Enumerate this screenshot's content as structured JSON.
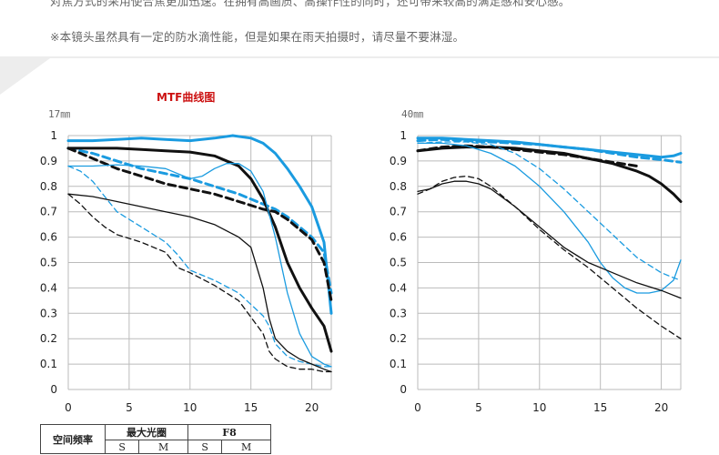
{
  "notes": {
    "top": "对焦方式的采用使合焦更加迅速。在拥有高画质、高操作性的同时，还可带来较高的满足感和安心感。",
    "warning": "※本镜头虽然具有一定的防水滴性能，但是如果在雨天拍摄时，请尽量不要淋湿。"
  },
  "colors": {
    "blue": "#1a9be0",
    "black": "#111111",
    "red": "#cc1111",
    "banner": "#ededed"
  },
  "chart_title": "MTF曲线图",
  "legend": {
    "header": "空间频率",
    "max_aperture": "最大光圈",
    "f8": "F8",
    "s": "S",
    "m": "M"
  },
  "chart_data": [
    {
      "type": "line",
      "title": "17㎜",
      "xlim": [
        0,
        21.6
      ],
      "ylim": [
        0,
        1
      ],
      "xticks": [
        "0",
        "5",
        "10",
        "15",
        "20"
      ],
      "yticks": [
        "0",
        "0.1",
        "0.2",
        "0.3",
        "0.4",
        "0.5",
        "0.6",
        "0.7",
        "0.8",
        "0.9",
        "1"
      ],
      "grid": true,
      "series": [
        {
          "color": "blue",
          "width": "thick",
          "dash": "solid",
          "x": [
            0,
            2,
            4,
            6,
            8,
            10,
            12,
            13.5,
            15,
            16,
            17,
            18,
            19,
            20,
            21,
            21.6
          ],
          "y": [
            0.98,
            0.98,
            0.985,
            0.99,
            0.985,
            0.98,
            0.99,
            1.0,
            0.99,
            0.97,
            0.93,
            0.87,
            0.8,
            0.72,
            0.58,
            0.3
          ]
        },
        {
          "color": "blue",
          "width": "thick",
          "dash": "dashed",
          "x": [
            0,
            2,
            4,
            6,
            8,
            10,
            12,
            14,
            16,
            17,
            18,
            19,
            20,
            21,
            21.6
          ],
          "y": [
            0.95,
            0.93,
            0.9,
            0.87,
            0.85,
            0.83,
            0.8,
            0.77,
            0.73,
            0.71,
            0.68,
            0.64,
            0.6,
            0.54,
            0.38
          ]
        },
        {
          "color": "black",
          "width": "thick",
          "dash": "solid",
          "x": [
            0,
            2,
            4,
            6,
            8,
            10,
            12,
            14,
            15,
            16,
            17,
            18,
            19,
            20,
            21,
            21.6
          ],
          "y": [
            0.95,
            0.95,
            0.95,
            0.945,
            0.94,
            0.935,
            0.92,
            0.88,
            0.83,
            0.75,
            0.64,
            0.5,
            0.4,
            0.32,
            0.25,
            0.15
          ]
        },
        {
          "color": "black",
          "width": "thick",
          "dash": "dashed",
          "x": [
            0,
            2,
            4,
            6,
            8,
            10,
            12,
            14,
            16,
            17,
            18,
            19,
            20,
            21,
            21.6
          ],
          "y": [
            0.95,
            0.91,
            0.87,
            0.84,
            0.81,
            0.79,
            0.77,
            0.74,
            0.71,
            0.7,
            0.67,
            0.63,
            0.59,
            0.5,
            0.35
          ]
        },
        {
          "color": "blue",
          "width": "thin",
          "dash": "solid",
          "x": [
            0,
            2,
            4,
            6,
            8,
            10,
            11,
            12,
            13,
            14,
            15,
            16,
            17,
            18,
            19,
            20,
            21,
            21.6
          ],
          "y": [
            0.88,
            0.88,
            0.885,
            0.88,
            0.87,
            0.83,
            0.84,
            0.87,
            0.89,
            0.89,
            0.86,
            0.78,
            0.6,
            0.38,
            0.22,
            0.13,
            0.1,
            0.09
          ]
        },
        {
          "color": "blue",
          "width": "thin",
          "dash": "dashed",
          "x": [
            0,
            1,
            2,
            3,
            4,
            6,
            8,
            9,
            10,
            12,
            14,
            16,
            16.5,
            17,
            18,
            19,
            20,
            21,
            21.6
          ],
          "y": [
            0.88,
            0.86,
            0.82,
            0.76,
            0.7,
            0.64,
            0.58,
            0.53,
            0.47,
            0.43,
            0.38,
            0.29,
            0.25,
            0.18,
            0.13,
            0.11,
            0.1,
            0.09,
            0.09
          ]
        },
        {
          "color": "black",
          "width": "thin",
          "dash": "solid",
          "x": [
            0,
            2,
            4,
            6,
            8,
            10,
            12,
            14,
            15,
            16,
            16.5,
            17,
            18,
            19,
            20,
            21,
            21.6
          ],
          "y": [
            0.77,
            0.76,
            0.74,
            0.72,
            0.7,
            0.68,
            0.65,
            0.6,
            0.56,
            0.4,
            0.28,
            0.2,
            0.15,
            0.12,
            0.1,
            0.08,
            0.07
          ]
        },
        {
          "color": "black",
          "width": "thin",
          "dash": "dashed",
          "x": [
            0,
            1,
            2,
            3,
            4,
            6,
            8,
            9,
            10,
            12,
            14,
            16,
            16.5,
            17,
            18,
            19,
            20,
            21,
            21.6
          ],
          "y": [
            0.77,
            0.73,
            0.68,
            0.64,
            0.61,
            0.58,
            0.54,
            0.48,
            0.46,
            0.41,
            0.35,
            0.22,
            0.15,
            0.12,
            0.09,
            0.08,
            0.08,
            0.07,
            0.07
          ]
        }
      ]
    },
    {
      "type": "line",
      "title": "40㎜",
      "xlim": [
        0,
        21.6
      ],
      "ylim": [
        0,
        1
      ],
      "xticks": [
        "0",
        "5",
        "10",
        "15",
        "20"
      ],
      "yticks": [
        "0",
        "0.1",
        "0.2",
        "0.3",
        "0.4",
        "0.5",
        "0.6",
        "0.7",
        "0.8",
        "0.9",
        "1"
      ],
      "grid": true,
      "series": [
        {
          "color": "blue",
          "width": "thick",
          "dash": "solid",
          "x": [
            0,
            2,
            4,
            6,
            8,
            10,
            12,
            14,
            16,
            18,
            19,
            20,
            21,
            21.6
          ],
          "y": [
            0.99,
            0.99,
            0.985,
            0.98,
            0.975,
            0.965,
            0.955,
            0.945,
            0.935,
            0.925,
            0.92,
            0.915,
            0.92,
            0.93
          ]
        },
        {
          "color": "blue",
          "width": "thick",
          "dash": "dashed",
          "x": [
            0,
            2,
            4,
            6,
            8,
            10,
            12,
            14,
            16,
            18,
            20,
            21.6
          ],
          "y": [
            0.98,
            0.985,
            0.98,
            0.975,
            0.97,
            0.965,
            0.955,
            0.945,
            0.93,
            0.915,
            0.905,
            0.895
          ]
        },
        {
          "color": "black",
          "width": "thick",
          "dash": "solid",
          "x": [
            0,
            2,
            4,
            6,
            8,
            10,
            12,
            14,
            16,
            18,
            19,
            20,
            21,
            21.6
          ],
          "y": [
            0.94,
            0.95,
            0.955,
            0.955,
            0.95,
            0.94,
            0.93,
            0.91,
            0.89,
            0.86,
            0.84,
            0.81,
            0.77,
            0.74
          ]
        },
        {
          "color": "black",
          "width": "thick",
          "dash": "dashed",
          "x": [
            0,
            2,
            4,
            6,
            8,
            10,
            12,
            14,
            16,
            18
          ],
          "y": [
            0.94,
            0.955,
            0.96,
            0.955,
            0.945,
            0.935,
            0.925,
            0.91,
            0.895,
            0.88
          ]
        },
        {
          "color": "blue",
          "width": "thin",
          "dash": "solid",
          "x": [
            0,
            2,
            4,
            6,
            8,
            10,
            12,
            14,
            15,
            16,
            17,
            18,
            19,
            20,
            21,
            21.6
          ],
          "y": [
            0.97,
            0.97,
            0.96,
            0.93,
            0.88,
            0.8,
            0.7,
            0.58,
            0.5,
            0.44,
            0.4,
            0.38,
            0.38,
            0.39,
            0.43,
            0.51
          ]
        },
        {
          "color": "blue",
          "width": "thin",
          "dash": "dashed",
          "x": [
            0,
            2,
            4,
            6,
            8,
            10,
            12,
            14,
            16,
            18,
            20,
            21,
            21.6
          ],
          "y": [
            0.97,
            0.975,
            0.975,
            0.965,
            0.93,
            0.87,
            0.79,
            0.7,
            0.61,
            0.52,
            0.46,
            0.44,
            0.43
          ]
        },
        {
          "color": "black",
          "width": "thin",
          "dash": "solid",
          "x": [
            0,
            1,
            2,
            3,
            4,
            5,
            6,
            8,
            10,
            12,
            14,
            16,
            18,
            20,
            21.6
          ],
          "y": [
            0.78,
            0.79,
            0.81,
            0.82,
            0.82,
            0.81,
            0.79,
            0.72,
            0.64,
            0.56,
            0.5,
            0.46,
            0.42,
            0.39,
            0.36
          ]
        },
        {
          "color": "black",
          "width": "thin",
          "dash": "dashed",
          "x": [
            0,
            1,
            2,
            3,
            4,
            5,
            6,
            8,
            10,
            12,
            14,
            16,
            18,
            20,
            21.6
          ],
          "y": [
            0.77,
            0.79,
            0.82,
            0.835,
            0.84,
            0.83,
            0.8,
            0.72,
            0.63,
            0.55,
            0.48,
            0.4,
            0.32,
            0.25,
            0.2
          ]
        }
      ]
    }
  ]
}
